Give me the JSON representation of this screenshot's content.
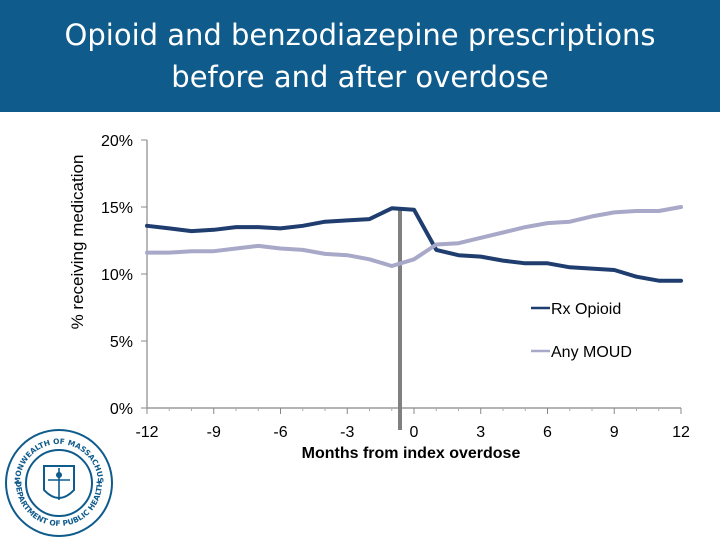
{
  "title_lines": [
    "Opioid and benzodiazepine prescriptions",
    "before and after overdose"
  ],
  "chart_data": {
    "type": "line",
    "xlabel": "Months from index overdose",
    "ylabel": "% receiving medication",
    "x_ticks": [
      -12,
      -9,
      -6,
      -3,
      0,
      3,
      6,
      9,
      12
    ],
    "y_ticks": [
      "0%",
      "5%",
      "10%",
      "15%",
      "20%"
    ],
    "xlim": [
      -12,
      12
    ],
    "ylim": [
      0,
      20
    ],
    "marker_x": 0,
    "legend_position": "right",
    "x": [
      -12,
      -11,
      -10,
      -9,
      -8,
      -7,
      -6,
      -5,
      -4,
      -3,
      -2,
      -1,
      0,
      1,
      2,
      3,
      4,
      5,
      6,
      7,
      8,
      9,
      10,
      11,
      12
    ],
    "series": [
      {
        "name": "Rx Opioid",
        "color": "#1f3d6e",
        "values": [
          13.6,
          13.4,
          13.2,
          13.3,
          13.5,
          13.5,
          13.4,
          13.6,
          13.9,
          14.0,
          14.1,
          14.9,
          14.8,
          11.8,
          11.4,
          11.3,
          11.0,
          10.8,
          10.8,
          10.5,
          10.4,
          10.3,
          9.8,
          9.5,
          9.5
        ]
      },
      {
        "name": "Any MOUD",
        "color": "#a8a8c8",
        "values": [
          11.6,
          11.6,
          11.7,
          11.7,
          11.9,
          12.1,
          11.9,
          11.8,
          11.5,
          11.4,
          11.1,
          10.6,
          11.1,
          12.2,
          12.3,
          12.7,
          13.1,
          13.5,
          13.8,
          13.9,
          14.3,
          14.6,
          14.7,
          14.7,
          15.0
        ]
      }
    ]
  },
  "seal": {
    "text_top": "COMMONWEALTH OF MASSACHUSETTS",
    "text_bottom": "DEPARTMENT OF PUBLIC HEALTH"
  }
}
